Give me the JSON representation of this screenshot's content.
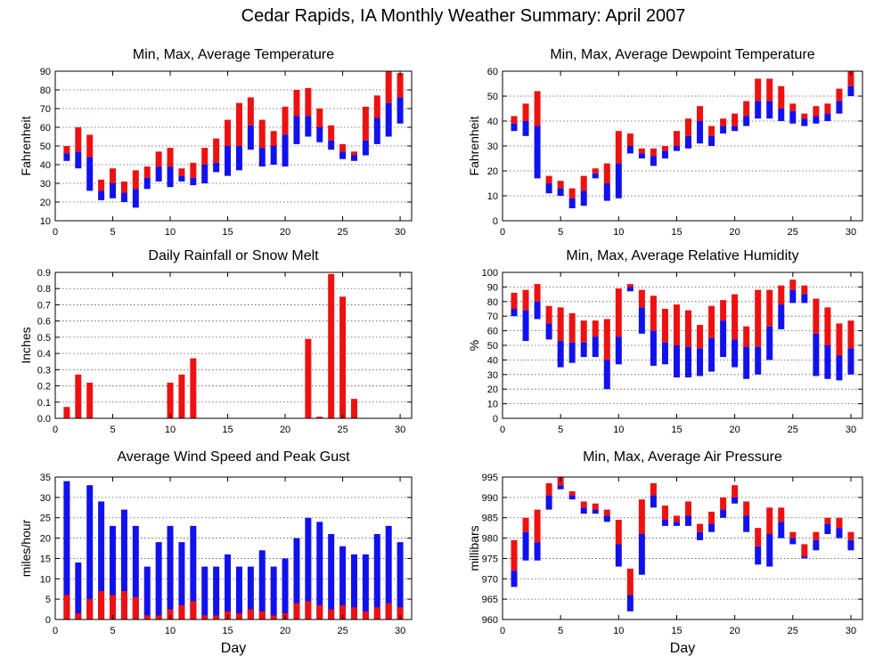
{
  "title": "Cedar Rapids, IA Monthly Weather Summary: April 2007",
  "colors": {
    "red": "#ee1111",
    "blue": "#1111ee",
    "grid": "#555555"
  },
  "chart_data": [
    {
      "id": "temp",
      "type": "bar",
      "title": "Min, Max, Average Temperature",
      "ylabel": "Fahrenheit",
      "xlabel": "",
      "ylim": [
        10,
        90
      ],
      "yticks": [
        10,
        20,
        30,
        40,
        50,
        60,
        70,
        80,
        90
      ],
      "xticks": [
        0,
        5,
        10,
        15,
        20,
        25,
        30
      ],
      "grid": true,
      "days": [
        1,
        2,
        3,
        4,
        5,
        6,
        7,
        8,
        9,
        10,
        11,
        12,
        13,
        14,
        15,
        16,
        17,
        18,
        19,
        20,
        21,
        22,
        23,
        24,
        25,
        26,
        27,
        28,
        29,
        30
      ],
      "min": [
        42,
        38,
        26,
        21,
        22,
        20,
        17,
        27,
        31,
        28,
        31,
        29,
        30,
        36,
        34,
        37,
        48,
        39,
        40,
        39,
        51,
        55,
        52,
        48,
        43,
        42,
        45,
        51,
        55,
        62
      ],
      "avg": [
        46,
        47,
        44,
        26,
        30,
        25,
        27,
        33,
        39,
        39,
        34,
        33,
        40,
        41,
        50,
        50,
        61,
        49,
        50,
        56,
        66,
        66,
        60,
        53,
        47,
        45,
        53,
        65,
        73,
        76
      ],
      "max": [
        50,
        60,
        56,
        32,
        38,
        31,
        37,
        39,
        47,
        49,
        38,
        41,
        49,
        54,
        64,
        73,
        76,
        64,
        58,
        71,
        80,
        81,
        70,
        61,
        51,
        47,
        71,
        77,
        90,
        89
      ]
    },
    {
      "id": "dew",
      "type": "bar",
      "title": "Min, Max, Average Dewpoint Temperature",
      "ylabel": "Fahrenheit",
      "xlabel": "",
      "ylim": [
        0,
        60
      ],
      "yticks": [
        0,
        10,
        20,
        30,
        40,
        50,
        60
      ],
      "xticks": [
        0,
        5,
        10,
        15,
        20,
        25,
        30
      ],
      "grid": true,
      "days": [
        1,
        2,
        3,
        4,
        5,
        6,
        7,
        8,
        9,
        10,
        11,
        12,
        13,
        14,
        15,
        16,
        17,
        18,
        19,
        20,
        21,
        22,
        23,
        24,
        25,
        26,
        27,
        28,
        29,
        30
      ],
      "min": [
        36,
        34,
        17,
        11,
        10,
        5,
        6,
        17,
        8,
        9,
        27,
        25,
        22,
        25,
        28,
        29,
        31,
        30,
        35,
        36,
        38,
        41,
        41,
        40,
        39,
        38,
        39,
        40,
        43,
        50
      ],
      "avg": [
        39,
        40,
        38,
        15,
        13,
        9,
        12,
        19,
        15,
        23,
        30,
        27,
        26,
        28,
        30,
        34,
        40,
        34,
        38,
        38,
        42,
        48,
        48,
        45,
        44,
        41,
        42,
        43,
        48,
        54
      ],
      "max": [
        42,
        47,
        52,
        18,
        16,
        13,
        18,
        21,
        23,
        36,
        35,
        29,
        29,
        30,
        36,
        41,
        46,
        38,
        41,
        43,
        48,
        57,
        57,
        54,
        47,
        43,
        46,
        47,
        53,
        60
      ]
    },
    {
      "id": "rain",
      "type": "bar",
      "title": "Daily Rainfall or Snow Melt",
      "ylabel": "Inches",
      "xlabel": "",
      "ylim": [
        0,
        0.9
      ],
      "yticks": [
        0.0,
        0.1,
        0.2,
        0.3,
        0.4,
        0.5,
        0.6,
        0.7,
        0.8,
        0.9
      ],
      "ytick_labels": [
        "0.0",
        "0.1",
        "0.2",
        "0.3",
        "0.4",
        "0.5",
        "0.6",
        "0.7",
        "0.8",
        "0.9"
      ],
      "xticks": [
        0,
        5,
        10,
        15,
        20,
        25,
        30
      ],
      "grid": true,
      "days": [
        1,
        2,
        3,
        4,
        5,
        6,
        7,
        8,
        9,
        10,
        11,
        12,
        13,
        14,
        15,
        16,
        17,
        18,
        19,
        20,
        21,
        22,
        23,
        24,
        25,
        26,
        27,
        28,
        29,
        30
      ],
      "values": [
        0.07,
        0.27,
        0.22,
        0,
        0,
        0,
        0,
        0,
        0,
        0.22,
        0.27,
        0.37,
        0,
        0,
        0,
        0,
        0,
        0,
        0,
        0,
        0,
        0.49,
        0.01,
        0.89,
        0.75,
        0.12,
        0,
        0,
        0,
        0
      ]
    },
    {
      "id": "rh",
      "type": "bar",
      "title": "Min, Max, Average Relative Humidity",
      "ylabel": "%",
      "xlabel": "",
      "ylim": [
        0,
        100
      ],
      "yticks": [
        0,
        10,
        20,
        30,
        40,
        50,
        60,
        70,
        80,
        90,
        100
      ],
      "xticks": [
        0,
        5,
        10,
        15,
        20,
        25,
        30
      ],
      "grid": true,
      "days": [
        1,
        2,
        3,
        4,
        5,
        6,
        7,
        8,
        9,
        10,
        11,
        12,
        13,
        14,
        15,
        16,
        17,
        18,
        19,
        20,
        21,
        22,
        23,
        24,
        25,
        26,
        27,
        28,
        29,
        30
      ],
      "min": [
        70,
        53,
        68,
        54,
        35,
        38,
        42,
        42,
        20,
        37,
        87,
        58,
        36,
        37,
        28,
        28,
        29,
        32,
        42,
        35,
        27,
        30,
        40,
        61,
        79,
        79,
        29,
        27,
        26,
        30
      ],
      "avg": [
        75,
        74,
        80,
        65,
        53,
        52,
        52,
        56,
        40,
        56,
        90,
        76,
        60,
        52,
        50,
        49,
        48,
        55,
        67,
        54,
        49,
        49,
        63,
        78,
        88,
        85,
        58,
        50,
        43,
        48
      ],
      "max": [
        86,
        88,
        92,
        77,
        76,
        72,
        67,
        67,
        68,
        89,
        92,
        88,
        84,
        75,
        78,
        74,
        64,
        77,
        81,
        85,
        63,
        88,
        88,
        91,
        95,
        91,
        82,
        76,
        65,
        67
      ]
    },
    {
      "id": "wind",
      "type": "bar",
      "title": "Average Wind Speed and Peak Gust",
      "ylabel": "miles/hour",
      "xlabel": "Day",
      "ylim": [
        0,
        35
      ],
      "yticks": [
        0,
        5,
        10,
        15,
        20,
        25,
        30,
        35
      ],
      "xticks": [
        0,
        5,
        10,
        15,
        20,
        25,
        30
      ],
      "grid": true,
      "days": [
        1,
        2,
        3,
        4,
        5,
        6,
        7,
        8,
        9,
        10,
        11,
        12,
        13,
        14,
        15,
        16,
        17,
        18,
        19,
        20,
        21,
        22,
        23,
        24,
        25,
        26,
        27,
        28,
        29,
        30
      ],
      "avg_speed": [
        6,
        1.5,
        5,
        7,
        6,
        7,
        5.5,
        1,
        1,
        2.5,
        3.5,
        4.5,
        1,
        1,
        2,
        1.5,
        2.5,
        2,
        1,
        1.5,
        4,
        4.5,
        3.5,
        2.5,
        3.5,
        3,
        2,
        3,
        4,
        3
      ],
      "peak_gust": [
        34,
        14,
        33,
        29,
        23,
        27,
        23,
        13,
        19,
        23,
        19,
        23,
        13,
        13,
        16,
        13,
        13,
        17,
        13,
        15,
        20,
        25,
        24,
        21,
        18,
        16,
        16,
        21,
        23,
        19
      ]
    },
    {
      "id": "pres",
      "type": "bar",
      "title": "Min, Max, Average Air Pressure",
      "ylabel": "millibars",
      "xlabel": "Day",
      "ylim": [
        960,
        995
      ],
      "yticks": [
        960,
        965,
        970,
        975,
        980,
        985,
        990,
        995
      ],
      "xticks": [
        0,
        5,
        10,
        15,
        20,
        25,
        30
      ],
      "grid": true,
      "days": [
        1,
        2,
        3,
        4,
        5,
        6,
        7,
        8,
        9,
        10,
        11,
        12,
        13,
        14,
        15,
        16,
        17,
        18,
        19,
        20,
        21,
        22,
        23,
        24,
        25,
        26,
        27,
        28,
        29,
        30
      ],
      "min": [
        968,
        974.5,
        974.5,
        987,
        992,
        989.5,
        986,
        986,
        984,
        973,
        962,
        971,
        987.5,
        983,
        983,
        983,
        979.5,
        981.5,
        985,
        988.5,
        981.5,
        973.5,
        973,
        980,
        978.5,
        975,
        977,
        981,
        980,
        977
      ],
      "avg": [
        972,
        981.5,
        979,
        990.5,
        993,
        990.5,
        987.5,
        987,
        985.5,
        978.5,
        966,
        981,
        990.5,
        984.5,
        984,
        985.5,
        981.5,
        983.5,
        987,
        990,
        985.5,
        978,
        981,
        984,
        980,
        975.5,
        979.5,
        983.5,
        982.5,
        979.5
      ],
      "max": [
        979.5,
        985,
        987,
        993.5,
        995,
        991.5,
        989,
        988.5,
        987,
        984.5,
        972.5,
        989.5,
        993.5,
        988,
        985.5,
        989,
        983.5,
        986.5,
        990,
        993,
        989,
        982.5,
        987.5,
        987.5,
        981.5,
        978.5,
        981.5,
        985,
        985,
        981.5
      ]
    }
  ]
}
